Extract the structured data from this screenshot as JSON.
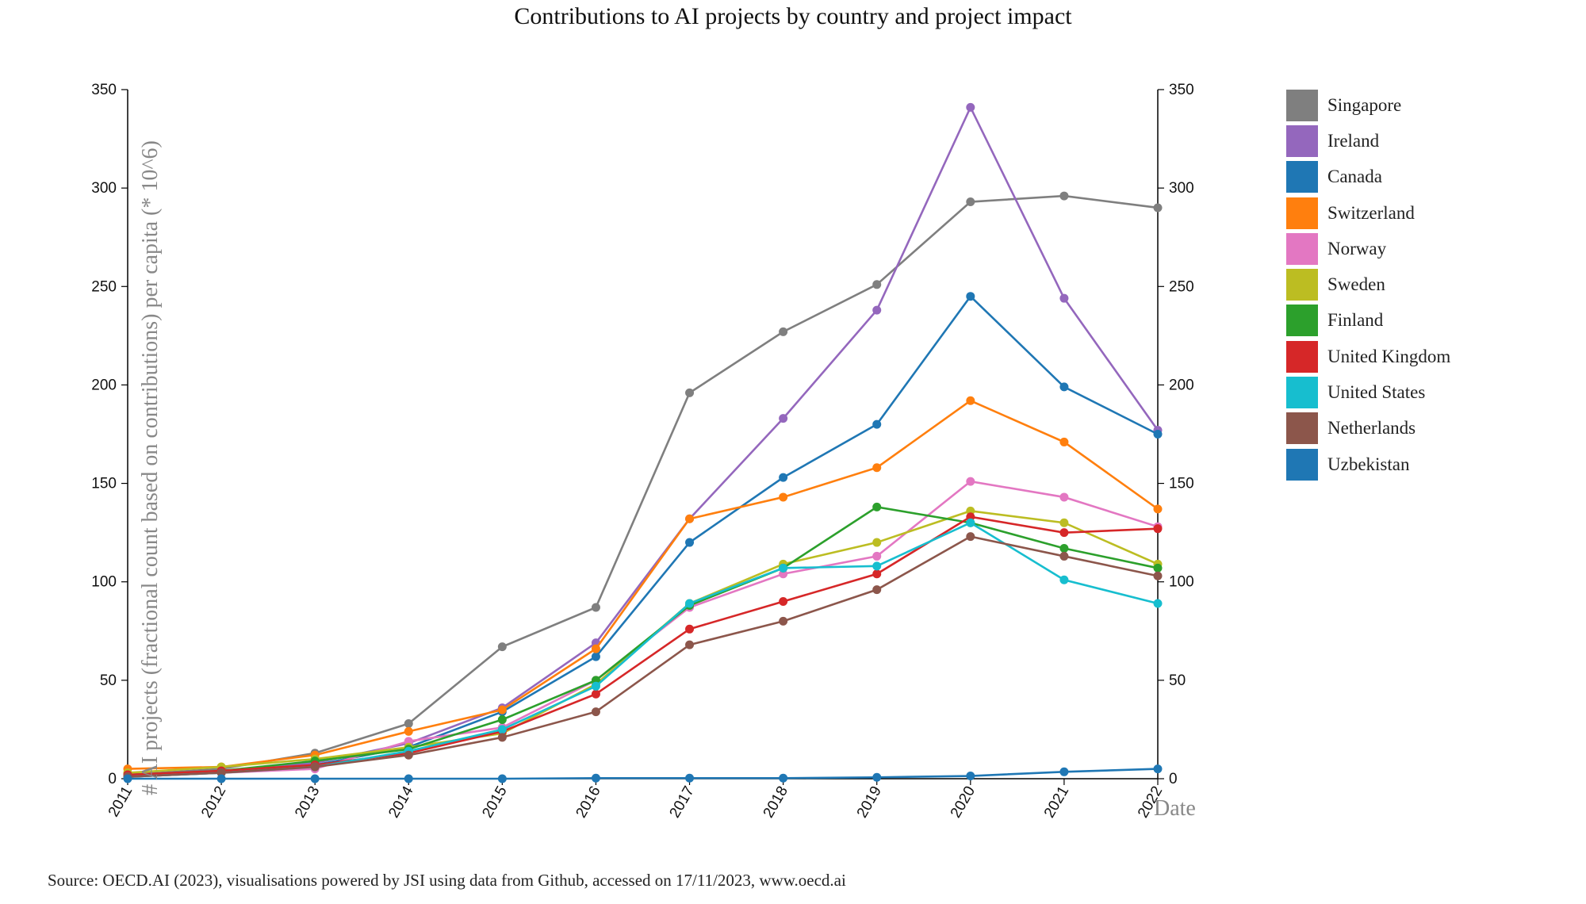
{
  "title": "Contributions to AI projects by country and project impact",
  "source": "Source: OECD.AI (2023), visualisations powered by JSI using data from Github, accessed on 17/11/2023, www.oecd.ai",
  "chart_data": {
    "type": "line",
    "title": "Contributions to AI projects by country and project impact",
    "xlabel": "Date",
    "ylabel": "# AI projects (fractional count based on contributions) per capita (* 10^6)",
    "x": [
      "2011",
      "2012",
      "2013",
      "2014",
      "2015",
      "2016",
      "2017",
      "2018",
      "2019",
      "2020",
      "2021",
      "2022"
    ],
    "ylim": [
      0,
      350
    ],
    "yticks": [
      0,
      50,
      100,
      150,
      200,
      250,
      300,
      350
    ],
    "grid": false,
    "legend_position": "right",
    "series": [
      {
        "name": "Singapore",
        "color": "#7f7f7f",
        "values": [
          2,
          5,
          13,
          28,
          67,
          87,
          196,
          227,
          251,
          293,
          296,
          290
        ]
      },
      {
        "name": "Ireland",
        "color": "#9467bd",
        "values": [
          2,
          4,
          8,
          18,
          36,
          69,
          132,
          183,
          238,
          341,
          244,
          177
        ]
      },
      {
        "name": "Canada",
        "color": "#1f77b4",
        "values": [
          1,
          3,
          7,
          16,
          34,
          62,
          120,
          153,
          180,
          245,
          199,
          175
        ]
      },
      {
        "name": "Switzerland",
        "color": "#ff7f0e",
        "values": [
          5,
          6,
          12,
          24,
          35,
          66,
          132,
          143,
          158,
          192,
          171,
          137
        ]
      },
      {
        "name": "Norway",
        "color": "#e377c2",
        "values": [
          2,
          3,
          5,
          19,
          26,
          50,
          87,
          104,
          113,
          151,
          143,
          128
        ]
      },
      {
        "name": "Sweden",
        "color": "#bcbd22",
        "values": [
          3,
          6,
          10,
          16,
          23,
          48,
          89,
          109,
          120,
          136,
          130,
          109
        ]
      },
      {
        "name": "Finland",
        "color": "#2ca02c",
        "values": [
          2,
          4,
          9,
          15,
          30,
          50,
          88,
          107,
          138,
          130,
          117,
          107
        ]
      },
      {
        "name": "United Kingdom",
        "color": "#d62728",
        "values": [
          2,
          4,
          7,
          13,
          24,
          43,
          76,
          90,
          104,
          133,
          125,
          127
        ]
      },
      {
        "name": "United States",
        "color": "#17becf",
        "values": [
          1,
          3,
          6,
          14,
          25,
          47,
          89,
          107,
          108,
          130,
          101,
          89
        ]
      },
      {
        "name": "Netherlands",
        "color": "#8c564b",
        "values": [
          1,
          3,
          6,
          12,
          21,
          34,
          68,
          80,
          96,
          123,
          113,
          103
        ]
      },
      {
        "name": "Uzbekistan",
        "color": "#1f77b4",
        "values": [
          0,
          0,
          0,
          0,
          0,
          0.3,
          0.3,
          0.3,
          0.7,
          1.4,
          3.5,
          5
        ]
      }
    ]
  }
}
